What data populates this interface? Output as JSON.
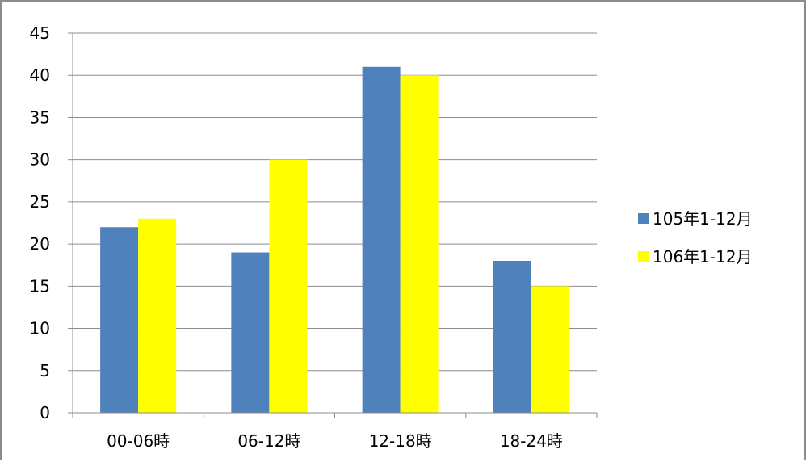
{
  "chart_data": {
    "type": "bar",
    "title": "",
    "xlabel": "",
    "ylabel": "",
    "categories": [
      "00-06時",
      "06-12時",
      "12-18時",
      "18-24時"
    ],
    "series": [
      {
        "name": "105年1-12月",
        "values": [
          22,
          19,
          41,
          18
        ],
        "color": "#4f81bd"
      },
      {
        "name": "106年1-12月",
        "values": [
          23,
          30,
          40,
          15
        ],
        "color": "#ffff00"
      }
    ],
    "ylim": [
      0,
      45
    ],
    "yticks": [
      0,
      5,
      10,
      15,
      20,
      25,
      30,
      35,
      40,
      45
    ],
    "grid": true,
    "legend_position": "right"
  }
}
